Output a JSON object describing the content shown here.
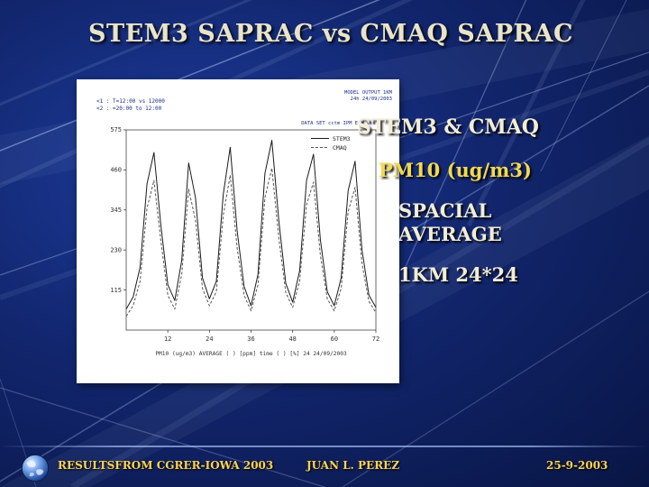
{
  "slide": {
    "title": "STEM3 SAPRAC vs CMAQ SAPRAC",
    "right_panel": {
      "line1": "STEM3 & CMAQ",
      "line2": "PM10 (ug/m3)",
      "line3": "SPACIAL AVERAGE",
      "line4": "1KM 24*24"
    },
    "footer": {
      "left": "RESULTSFROM CGRER-IOWA 2003",
      "center": "JUAN L. PEREZ",
      "right": "25-9-2003"
    },
    "colors": {
      "background": "#12266e",
      "title": "#e9e4c9",
      "accent_yellow": "#f2d94e",
      "cream": "#f2edd6",
      "footer_gold": "#ffd44a",
      "panel": "#ffffff"
    },
    "icons": {
      "globe": "earth-globe-icon"
    }
  },
  "chart_data": {
    "type": "line",
    "x": [
      0,
      2,
      4,
      6,
      8,
      10,
      12,
      14,
      16,
      18,
      20,
      22,
      24,
      26,
      28,
      30,
      32,
      34,
      36,
      38,
      40,
      42,
      44,
      46,
      48,
      50,
      52,
      54,
      56,
      58,
      60,
      62,
      64,
      66,
      68,
      70,
      72
    ],
    "series": [
      {
        "name": "STEM3",
        "color": "#1a1a1a",
        "values": [
          60,
          95,
          180,
          420,
          510,
          300,
          130,
          85,
          200,
          480,
          380,
          150,
          90,
          140,
          390,
          525,
          285,
          125,
          70,
          160,
          450,
          545,
          315,
          135,
          80,
          170,
          430,
          505,
          260,
          110,
          70,
          150,
          400,
          485,
          230,
          100,
          65
        ]
      },
      {
        "name": "CMAQ",
        "color": "#555555",
        "dash": "3,2",
        "values": [
          40,
          70,
          140,
          350,
          430,
          255,
          100,
          60,
          160,
          405,
          315,
          120,
          70,
          110,
          330,
          445,
          235,
          100,
          55,
          130,
          380,
          465,
          265,
          108,
          65,
          140,
          360,
          425,
          215,
          90,
          55,
          120,
          340,
          410,
          190,
          82,
          50
        ]
      }
    ],
    "xlim": [
      0,
      72
    ],
    "ylim": [
      0,
      575
    ],
    "xticks": [
      12,
      24,
      36,
      48,
      60,
      72
    ],
    "yticks": [
      115,
      230,
      345,
      460,
      575
    ],
    "xlabel": "",
    "ylabel": "",
    "grid": false,
    "legend_position": "top-right-inside",
    "annotations": {
      "top_left": [
        "<1 : T=12:00 vs 12000",
        "<2 : =20:00 to 12:00"
      ],
      "top_right": [
        "MODEL OUTPUT 1KM",
        "24h 24/09/2003"
      ],
      "dataset": "DATA SET cctm IPM E W crs"
    },
    "caption": "PM10 (ug/m3) AVERAGE ( ) [ppm] time ( ) [%] 24 24/09/2003"
  }
}
